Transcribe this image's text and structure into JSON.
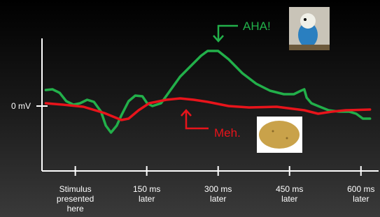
{
  "chart_data": {
    "type": "line",
    "xlim": [
      -70,
      640
    ],
    "ylim": [
      -10,
      10
    ],
    "xticks": [
      {
        "value": 0,
        "label": "Stimulus\npresented\nhere"
      },
      {
        "value": 150,
        "label": "150 ms\nlater"
      },
      {
        "value": 300,
        "label": "300 ms\nlater"
      },
      {
        "value": 450,
        "label": "450 ms\nlater"
      },
      {
        "value": 600,
        "label": "600 ms\nlater"
      }
    ],
    "yticks": [
      {
        "value": 0,
        "label": "0 mV"
      }
    ],
    "series": [
      {
        "color": "#22b04a",
        "x": [
          -62,
          -48,
          -33,
          -19,
          -4,
          10,
          25,
          39,
          54,
          64,
          75,
          87,
          97,
          112,
          126,
          141,
          151,
          162,
          180,
          199,
          220,
          242,
          264,
          278,
          300,
          322,
          351,
          380,
          409,
          438,
          459,
          474,
          481,
          486,
          496,
          510,
          532,
          554,
          575,
          590,
          604,
          619
        ],
        "values": [
          2.3,
          2.4,
          1.9,
          0.7,
          0.2,
          0.4,
          0.9,
          0.6,
          -0.8,
          -2.8,
          -3.8,
          -2.8,
          -1.3,
          0.7,
          1.5,
          1.4,
          0.4,
          0,
          0.4,
          2.2,
          4.2,
          5.7,
          7.2,
          7.9,
          7.9,
          6.7,
          4.7,
          3.2,
          2.2,
          1.7,
          1.7,
          2.2,
          2.4,
          1.2,
          0.4,
          0,
          -0.6,
          -0.8,
          -0.8,
          -1.1,
          -1.8,
          -1.8
        ]
      },
      {
        "color": "#e8141b",
        "x": [
          -62,
          -26,
          17,
          61,
          97,
          112,
          133,
          155,
          191,
          220,
          249,
          278,
          322,
          365,
          423,
          481,
          510,
          539,
          568,
          619
        ],
        "values": [
          0.4,
          0.2,
          -0.1,
          -1.0,
          -2.0,
          -1.8,
          -0.6,
          0.4,
          0.9,
          1.1,
          0.9,
          0.6,
          0,
          -0.2,
          -0.1,
          -0.6,
          -1.1,
          -0.8,
          -0.6,
          -0.5
        ]
      }
    ],
    "annotations": [
      "AHA!",
      "Meh."
    ]
  }
}
